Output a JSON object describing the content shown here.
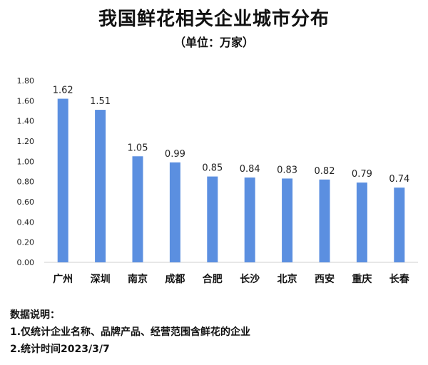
{
  "chart_data": {
    "type": "bar",
    "title": "我国鲜花相关企业城市分布",
    "subtitle": "（单位：万家）",
    "categories": [
      "广州",
      "深圳",
      "南京",
      "成都",
      "合肥",
      "长沙",
      "北京",
      "西安",
      "重庆",
      "长春"
    ],
    "values": [
      1.62,
      1.51,
      1.05,
      0.99,
      0.85,
      0.84,
      0.83,
      0.82,
      0.79,
      0.74
    ],
    "value_labels": [
      "1.62",
      "1.51",
      "1.05",
      "0.99",
      "0.85",
      "0.84",
      "0.83",
      "0.82",
      "0.79",
      "0.74"
    ],
    "ylim": [
      0,
      1.8
    ],
    "yticks": [
      "0.00",
      "0.20",
      "0.40",
      "0.60",
      "0.80",
      "1.00",
      "1.20",
      "1.40",
      "1.60",
      "1.80"
    ],
    "bar_color": "#5B8FE0",
    "grid": false,
    "legend": "none"
  },
  "notes": {
    "heading": "数据说明：",
    "line1": "1.仅统计企业名称、品牌产品、经营范围含鲜花的企业",
    "line2": "2.统计时间2023/3/7"
  }
}
